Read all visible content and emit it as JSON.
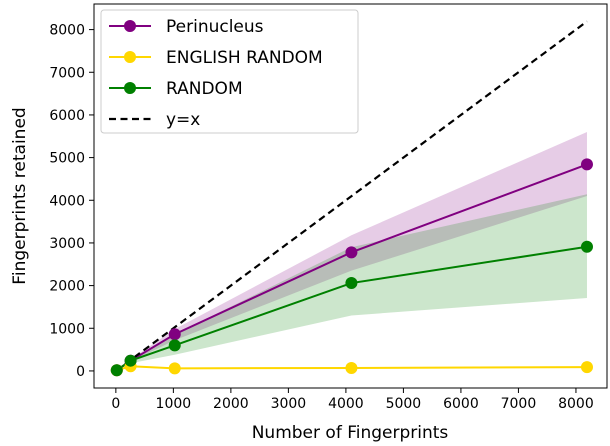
{
  "chart_data": {
    "type": "line",
    "xlabel": "Number of Fingerprints",
    "ylabel": "Fingerprints retained",
    "xlim": [
      -380,
      8540
    ],
    "ylim": [
      -400,
      8600
    ],
    "xticks": [
      0,
      1000,
      2000,
      3000,
      4000,
      5000,
      6000,
      7000,
      8000
    ],
    "yticks": [
      0,
      1000,
      2000,
      3000,
      4000,
      5000,
      6000,
      7000,
      8000
    ],
    "grid": false,
    "legend_position": "top-left",
    "series": [
      {
        "name": "Perinucleus",
        "color": "#800080",
        "marker": "circle",
        "x": [
          16,
          256,
          1024,
          4096,
          8192
        ],
        "y": [
          16,
          240,
          860,
          2780,
          4840
        ],
        "band_lower": [
          16,
          220,
          720,
          2350,
          4100
        ],
        "band_upper": [
          16,
          270,
          980,
          3180,
          5600
        ],
        "band_color": "#d5b3d8"
      },
      {
        "name": "ENGLISH RANDOM",
        "color": "#ffd700",
        "marker": "circle",
        "x": [
          16,
          256,
          1024,
          4096,
          8192
        ],
        "y": [
          16,
          110,
          60,
          70,
          90
        ],
        "band_lower": [
          16,
          95,
          45,
          55,
          70
        ],
        "band_upper": [
          16,
          125,
          75,
          85,
          110
        ],
        "band_color": "#fff3b0"
      },
      {
        "name": "RANDOM",
        "color": "#008000",
        "marker": "circle",
        "x": [
          16,
          256,
          1024,
          4096,
          8192
        ],
        "y": [
          16,
          240,
          600,
          2060,
          2910
        ],
        "band_lower": [
          16,
          180,
          380,
          1300,
          1710
        ],
        "band_upper": [
          16,
          265,
          860,
          2900,
          4140
        ],
        "band_color": "#cce6cc"
      },
      {
        "name": "y=x",
        "color": "#000000",
        "style": "dashed",
        "x": [
          0,
          8192
        ],
        "y": [
          0,
          8192
        ]
      }
    ]
  }
}
